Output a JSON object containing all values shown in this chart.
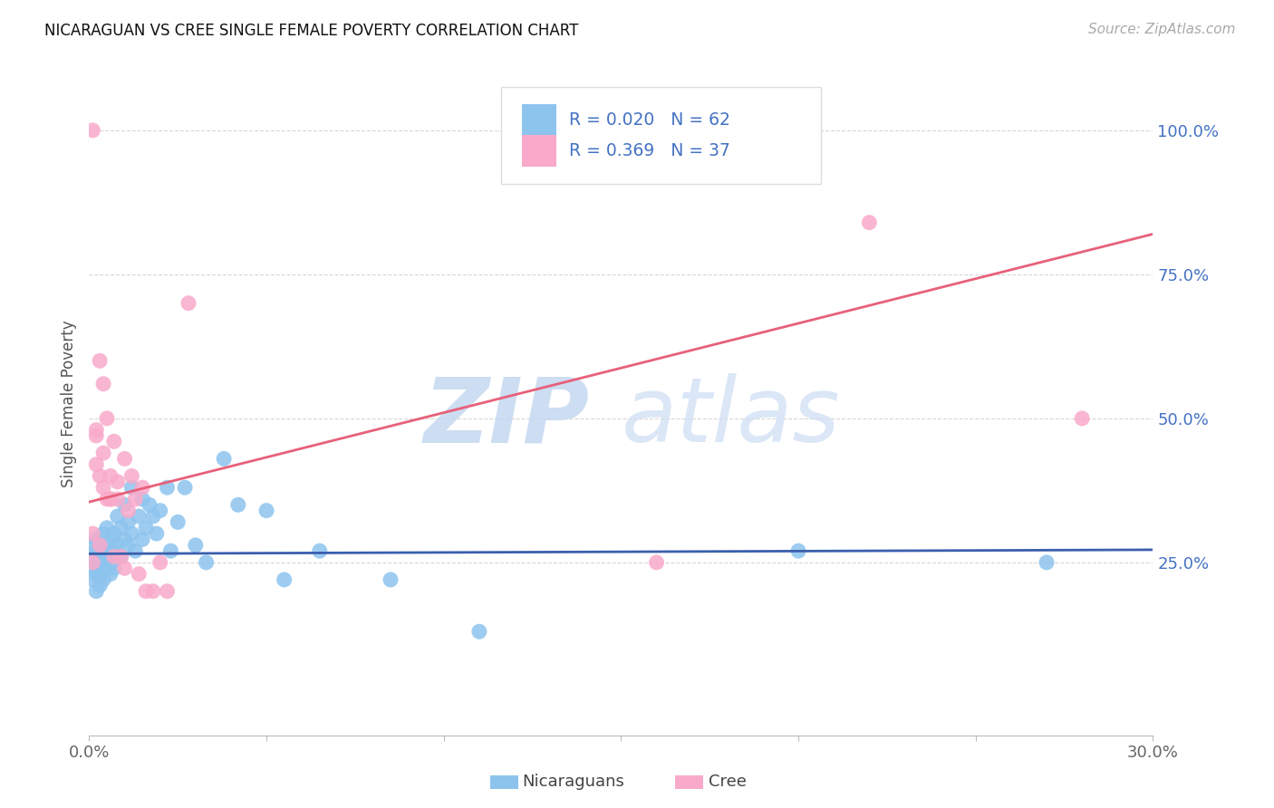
{
  "title": "NICARAGUAN VS CREE SINGLE FEMALE POVERTY CORRELATION CHART",
  "source": "Source: ZipAtlas.com",
  "ylabel": "Single Female Poverty",
  "legend_label_1": "Nicaraguans",
  "legend_label_2": "Cree",
  "r1": "0.020",
  "n1": "62",
  "r2": "0.369",
  "n2": "37",
  "xlim": [
    0.0,
    0.3
  ],
  "ylim": [
    -0.05,
    1.1
  ],
  "yticks": [
    0.25,
    0.5,
    0.75,
    1.0
  ],
  "ytick_labels": [
    "25.0%",
    "50.0%",
    "75.0%",
    "100.0%"
  ],
  "xtick_positions": [
    0.0,
    0.05,
    0.1,
    0.15,
    0.2,
    0.25,
    0.3
  ],
  "xtick_labels": [
    "0.0%",
    "",
    "",
    "",
    "",
    "",
    "30.0%"
  ],
  "color_blue": "#8DC4EE",
  "color_pink": "#F9AACA",
  "color_blue_line": "#3A5FAD",
  "color_pink_line": "#E8607A",
  "color_text_blue": "#4472C4",
  "watermark_zip": "ZIP",
  "watermark_atlas": "atlas",
  "blue_scatter_x": [
    0.001,
    0.001,
    0.001,
    0.001,
    0.002,
    0.002,
    0.002,
    0.002,
    0.002,
    0.003,
    0.003,
    0.003,
    0.003,
    0.003,
    0.004,
    0.004,
    0.004,
    0.004,
    0.005,
    0.005,
    0.005,
    0.005,
    0.006,
    0.006,
    0.006,
    0.007,
    0.007,
    0.007,
    0.008,
    0.008,
    0.009,
    0.009,
    0.01,
    0.01,
    0.011,
    0.011,
    0.012,
    0.012,
    0.013,
    0.014,
    0.015,
    0.015,
    0.016,
    0.017,
    0.018,
    0.019,
    0.02,
    0.022,
    0.023,
    0.025,
    0.027,
    0.03,
    0.033,
    0.038,
    0.042,
    0.05,
    0.055,
    0.065,
    0.085,
    0.11,
    0.2,
    0.27
  ],
  "blue_scatter_y": [
    0.24,
    0.26,
    0.22,
    0.28,
    0.23,
    0.25,
    0.27,
    0.29,
    0.2,
    0.24,
    0.26,
    0.21,
    0.28,
    0.23,
    0.25,
    0.27,
    0.3,
    0.22,
    0.26,
    0.24,
    0.28,
    0.31,
    0.25,
    0.29,
    0.23,
    0.27,
    0.3,
    0.24,
    0.28,
    0.33,
    0.26,
    0.31,
    0.29,
    0.35,
    0.28,
    0.32,
    0.3,
    0.38,
    0.27,
    0.33,
    0.29,
    0.36,
    0.31,
    0.35,
    0.33,
    0.3,
    0.34,
    0.38,
    0.27,
    0.32,
    0.38,
    0.28,
    0.25,
    0.43,
    0.35,
    0.34,
    0.22,
    0.27,
    0.22,
    0.13,
    0.27,
    0.25
  ],
  "pink_scatter_x": [
    0.001,
    0.001,
    0.001,
    0.002,
    0.002,
    0.002,
    0.003,
    0.003,
    0.003,
    0.004,
    0.004,
    0.004,
    0.005,
    0.005,
    0.006,
    0.006,
    0.006,
    0.007,
    0.007,
    0.008,
    0.008,
    0.009,
    0.01,
    0.01,
    0.011,
    0.012,
    0.013,
    0.014,
    0.015,
    0.016,
    0.018,
    0.02,
    0.022,
    0.028,
    0.16,
    0.22,
    0.28
  ],
  "pink_scatter_y": [
    1.0,
    0.25,
    0.3,
    0.48,
    0.42,
    0.47,
    0.6,
    0.4,
    0.28,
    0.56,
    0.38,
    0.44,
    0.36,
    0.5,
    0.36,
    0.4,
    0.36,
    0.46,
    0.26,
    0.39,
    0.36,
    0.26,
    0.43,
    0.24,
    0.34,
    0.4,
    0.36,
    0.23,
    0.38,
    0.2,
    0.2,
    0.25,
    0.2,
    0.7,
    0.25,
    0.84,
    0.5
  ],
  "blue_trend_x0": 0.0,
  "blue_trend_x1": 0.3,
  "blue_trend_y0": 0.265,
  "blue_trend_y1": 0.272,
  "pink_trend_x0": 0.0,
  "pink_trend_x1": 0.3,
  "pink_trend_y0": 0.355,
  "pink_trend_y1": 0.82
}
